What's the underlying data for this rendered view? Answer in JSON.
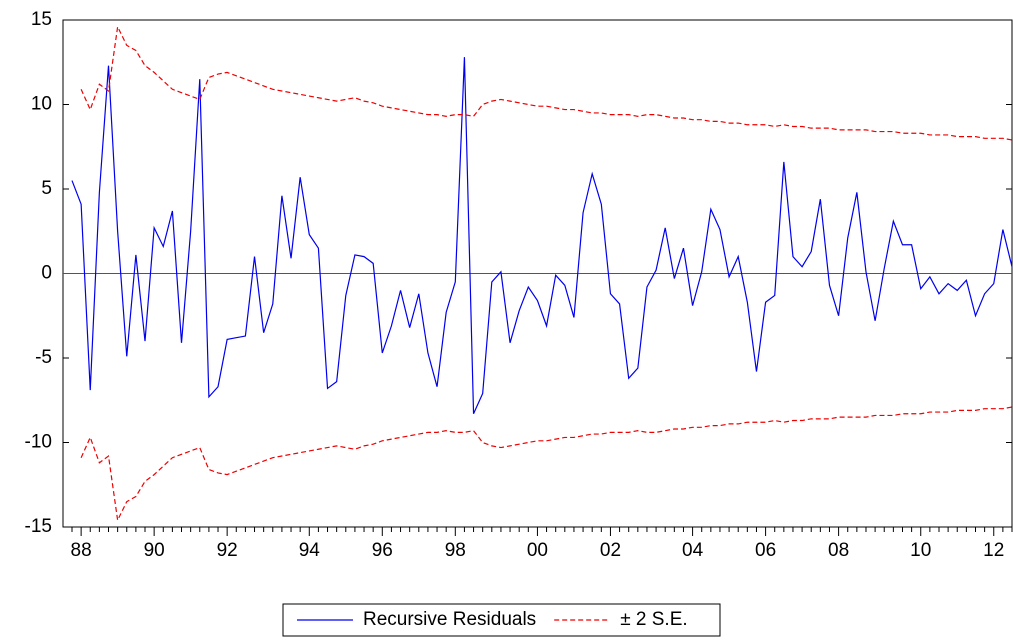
{
  "chart_data": {
    "type": "line",
    "categories": [
      null,
      "88",
      null,
      null,
      null,
      null,
      null,
      null,
      null,
      "90",
      null,
      null,
      null,
      null,
      null,
      null,
      null,
      "92",
      null,
      null,
      null,
      null,
      null,
      null,
      null,
      null,
      "94",
      null,
      null,
      null,
      null,
      null,
      null,
      null,
      "96",
      null,
      null,
      null,
      null,
      null,
      null,
      null,
      "98",
      null,
      null,
      null,
      null,
      null,
      null,
      null,
      null,
      "00",
      null,
      null,
      null,
      null,
      null,
      null,
      null,
      "02",
      null,
      null,
      null,
      null,
      null,
      null,
      null,
      null,
      "04",
      null,
      null,
      null,
      null,
      null,
      null,
      null,
      "06",
      null,
      null,
      null,
      null,
      null,
      null,
      null,
      "08",
      null,
      null,
      null,
      null,
      null,
      null,
      null,
      null,
      "10",
      null,
      null,
      null,
      null,
      null,
      null,
      null,
      "12",
      null,
      null
    ],
    "series": [
      {
        "name": "Recursive Residuals",
        "color": "#0000ee",
        "dash": false,
        "values": [
          5.5,
          4.1,
          -6.9,
          4.8,
          12.3,
          2.5,
          -4.9,
          1.1,
          -4.0,
          2.7,
          1.6,
          3.7,
          -4.1,
          2.5,
          11.5,
          -7.3,
          -6.7,
          -3.9,
          -3.8,
          -3.7,
          1.0,
          -3.5,
          -1.8,
          4.6,
          0.9,
          5.7,
          2.3,
          1.5,
          -6.8,
          -6.4,
          -1.3,
          1.1,
          1.0,
          0.6,
          -4.7,
          -3.1,
          -1.0,
          -3.2,
          -1.2,
          -4.7,
          -6.7,
          -2.3,
          -0.5,
          12.8,
          -8.3,
          -7.1,
          -0.5,
          0.1,
          -4.1,
          -2.2,
          -0.8,
          -1.6,
          -3.1,
          -0.1,
          -0.7,
          -2.6,
          3.6,
          5.9,
          4.1,
          -1.2,
          -1.8,
          -6.2,
          -5.6,
          -0.8,
          0.2,
          2.7,
          -0.3,
          1.5,
          -1.9,
          0.1,
          3.8,
          2.6,
          -0.2,
          1.0,
          -1.7,
          -5.8,
          -1.7,
          -1.3,
          6.6,
          1.0,
          0.4,
          1.3,
          4.4,
          -0.7,
          -2.5,
          2.1,
          4.8,
          0.1,
          -2.8,
          0.3,
          3.1,
          1.7,
          1.7,
          -0.9,
          -0.2,
          -1.2,
          -0.6,
          -1.0,
          -0.4,
          -2.5,
          -1.2,
          -0.6,
          2.6,
          0.4
        ]
      },
      {
        "name": "± 2 S.E.",
        "color": "#ee0000",
        "dash": true,
        "values": [
          null,
          10.9,
          9.7,
          11.2,
          10.8,
          14.6,
          13.5,
          13.2,
          12.3,
          11.9,
          11.4,
          10.9,
          10.7,
          10.5,
          10.3,
          11.6,
          11.8,
          11.9,
          11.7,
          11.5,
          11.3,
          11.1,
          10.9,
          10.8,
          10.7,
          10.6,
          10.5,
          10.4,
          10.3,
          10.2,
          10.3,
          10.4,
          10.2,
          10.1,
          9.9,
          9.8,
          9.7,
          9.6,
          9.5,
          9.4,
          9.4,
          9.3,
          9.4,
          9.4,
          9.3,
          10.0,
          10.2,
          10.3,
          10.2,
          10.1,
          10.0,
          9.9,
          9.9,
          9.8,
          9.7,
          9.7,
          9.6,
          9.5,
          9.5,
          9.4,
          9.4,
          9.4,
          9.3,
          9.4,
          9.4,
          9.3,
          9.2,
          9.2,
          9.1,
          9.1,
          9.0,
          9.0,
          8.9,
          8.9,
          8.8,
          8.8,
          8.8,
          8.7,
          8.8,
          8.7,
          8.7,
          8.6,
          8.6,
          8.6,
          8.5,
          8.5,
          8.5,
          8.5,
          8.4,
          8.4,
          8.4,
          8.3,
          8.3,
          8.3,
          8.2,
          8.2,
          8.2,
          8.1,
          8.1,
          8.1,
          8.0,
          8.0,
          8.0,
          7.9
        ],
        "lower": [
          null,
          -10.9,
          -9.7,
          -11.2,
          -10.8,
          -14.6,
          -13.5,
          -13.2,
          -12.3,
          -11.9,
          -11.4,
          -10.9,
          -10.7,
          -10.5,
          -10.3,
          -11.6,
          -11.8,
          -11.9,
          -11.7,
          -11.5,
          -11.3,
          -11.1,
          -10.9,
          -10.8,
          -10.7,
          -10.6,
          -10.5,
          -10.4,
          -10.3,
          -10.2,
          -10.3,
          -10.4,
          -10.2,
          -10.1,
          -9.9,
          -9.8,
          -9.7,
          -9.6,
          -9.5,
          -9.4,
          -9.4,
          -9.3,
          -9.4,
          -9.4,
          -9.3,
          -10.0,
          -10.2,
          -10.3,
          -10.2,
          -10.1,
          -10.0,
          -9.9,
          -9.9,
          -9.8,
          -9.7,
          -9.7,
          -9.6,
          -9.5,
          -9.5,
          -9.4,
          -9.4,
          -9.4,
          -9.3,
          -9.4,
          -9.4,
          -9.3,
          -9.2,
          -9.2,
          -9.1,
          -9.1,
          -9.0,
          -9.0,
          -8.9,
          -8.9,
          -8.8,
          -8.8,
          -8.8,
          -8.7,
          -8.8,
          -8.7,
          -8.7,
          -8.6,
          -8.6,
          -8.6,
          -8.5,
          -8.5,
          -8.5,
          -8.5,
          -8.4,
          -8.4,
          -8.4,
          -8.3,
          -8.3,
          -8.3,
          -8.2,
          -8.2,
          -8.2,
          -8.1,
          -8.1,
          -8.1,
          -8.0,
          -8.0,
          -8.0,
          -7.9
        ]
      }
    ],
    "ylim": [
      -15,
      15
    ],
    "yticks": [
      15,
      10,
      5,
      0,
      -5,
      -10,
      -15
    ],
    "grid": false,
    "legend": "bottom"
  }
}
